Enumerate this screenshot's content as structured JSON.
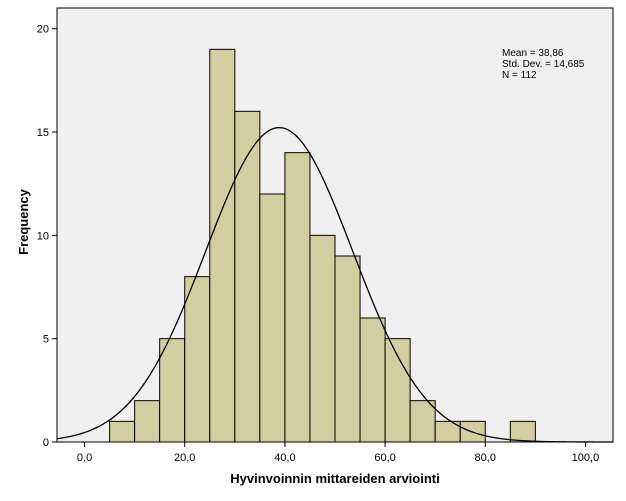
{
  "chart_data": {
    "type": "bar",
    "title": "",
    "xlabel": "Hyvinvoinnin mittareiden arviointi",
    "ylabel": "Frequency",
    "xlim": [
      -5.5,
      105.5
    ],
    "ylim": [
      0,
      21
    ],
    "bin_width": 5,
    "bins": [
      {
        "start": 5,
        "end": 10,
        "value": 1
      },
      {
        "start": 10,
        "end": 15,
        "value": 2
      },
      {
        "start": 15,
        "end": 20,
        "value": 5
      },
      {
        "start": 20,
        "end": 25,
        "value": 8
      },
      {
        "start": 25,
        "end": 30,
        "value": 19
      },
      {
        "start": 30,
        "end": 35,
        "value": 16
      },
      {
        "start": 35,
        "end": 40,
        "value": 12
      },
      {
        "start": 40,
        "end": 45,
        "value": 14
      },
      {
        "start": 45,
        "end": 50,
        "value": 10
      },
      {
        "start": 50,
        "end": 55,
        "value": 9
      },
      {
        "start": 55,
        "end": 60,
        "value": 6
      },
      {
        "start": 60,
        "end": 65,
        "value": 5
      },
      {
        "start": 65,
        "end": 70,
        "value": 2
      },
      {
        "start": 70,
        "end": 75,
        "value": 1
      },
      {
        "start": 75,
        "end": 80,
        "value": 1
      },
      {
        "start": 85,
        "end": 90,
        "value": 1
      }
    ],
    "x_ticks": [
      {
        "value": 0,
        "label": "0,0"
      },
      {
        "value": 20,
        "label": "20,0"
      },
      {
        "value": 40,
        "label": "40,0"
      },
      {
        "value": 60,
        "label": "60,0"
      },
      {
        "value": 80,
        "label": "80,0"
      },
      {
        "value": 100,
        "label": "100,0"
      }
    ],
    "y_ticks": [
      {
        "value": 0,
        "label": "0"
      },
      {
        "value": 5,
        "label": "5"
      },
      {
        "value": 10,
        "label": "10"
      },
      {
        "value": 15,
        "label": "15"
      },
      {
        "value": 20,
        "label": "20"
      }
    ],
    "normal_curve": {
      "mean": 38.86,
      "sd": 14.685,
      "n": 112
    },
    "stats_text": [
      "Mean = 38,86",
      "Std. Dev. = 14,685",
      "N = 112"
    ],
    "grid": false,
    "colors": {
      "plot_background": "#f0f0f0",
      "bar_fill": "#d3ce9f",
      "bar_stroke": "#000000",
      "curve": "#000000"
    }
  }
}
